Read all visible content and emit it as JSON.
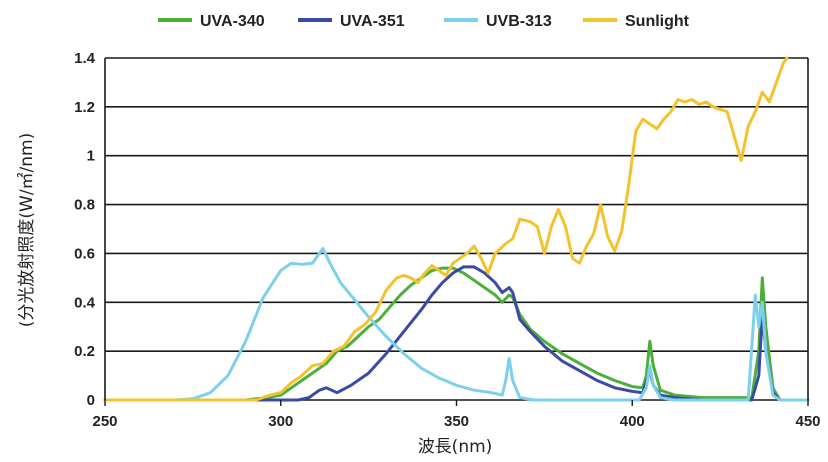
{
  "chart_data": {
    "type": "line",
    "xlabel": "波長(nm)",
    "ylabel": "(分光放射照度(W/㎡/nm)",
    "xlim": [
      250,
      450
    ],
    "ylim": [
      0,
      1.4
    ],
    "x_ticks": [
      "250",
      "300",
      "350",
      "400",
      "450"
    ],
    "y_ticks": [
      "0",
      "0.2",
      "0.4",
      "0.6",
      "0.8",
      "1",
      "1.2",
      "1.4"
    ],
    "grid": "horizontal",
    "legend_position": "top",
    "series": [
      {
        "name": "UVA-340",
        "color": "#4caf3a",
        "points": [
          [
            250,
            0
          ],
          [
            290,
            0
          ],
          [
            296,
            0.01
          ],
          [
            300,
            0.02
          ],
          [
            303,
            0.05
          ],
          [
            306,
            0.08
          ],
          [
            310,
            0.12
          ],
          [
            313,
            0.15
          ],
          [
            316,
            0.2
          ],
          [
            319,
            0.22
          ],
          [
            322,
            0.26
          ],
          [
            325,
            0.3
          ],
          [
            328,
            0.33
          ],
          [
            331,
            0.38
          ],
          [
            334,
            0.43
          ],
          [
            337,
            0.47
          ],
          [
            340,
            0.5
          ],
          [
            343,
            0.53
          ],
          [
            346,
            0.54
          ],
          [
            349,
            0.54
          ],
          [
            352,
            0.52
          ],
          [
            355,
            0.49
          ],
          [
            358,
            0.46
          ],
          [
            361,
            0.43
          ],
          [
            363,
            0.4
          ],
          [
            365,
            0.43
          ],
          [
            366,
            0.42
          ],
          [
            368,
            0.35
          ],
          [
            371,
            0.29
          ],
          [
            375,
            0.24
          ],
          [
            380,
            0.19
          ],
          [
            385,
            0.15
          ],
          [
            390,
            0.11
          ],
          [
            395,
            0.08
          ],
          [
            400,
            0.055
          ],
          [
            403,
            0.05
          ],
          [
            404,
            0.1
          ],
          [
            405,
            0.24
          ],
          [
            406,
            0.14
          ],
          [
            408,
            0.04
          ],
          [
            412,
            0.02
          ],
          [
            420,
            0.01
          ],
          [
            430,
            0.01
          ],
          [
            434,
            0.01
          ],
          [
            436,
            0.2
          ],
          [
            437,
            0.5
          ],
          [
            438,
            0.3
          ],
          [
            440,
            0.05
          ],
          [
            442,
            0
          ],
          [
            450,
            0
          ]
        ]
      },
      {
        "name": "UVA-351",
        "color": "#3a4aa6",
        "points": [
          [
            250,
            0
          ],
          [
            305,
            0
          ],
          [
            308,
            0.01
          ],
          [
            311,
            0.04
          ],
          [
            313,
            0.05
          ],
          [
            316,
            0.03
          ],
          [
            320,
            0.06
          ],
          [
            325,
            0.11
          ],
          [
            330,
            0.19
          ],
          [
            335,
            0.28
          ],
          [
            340,
            0.37
          ],
          [
            343,
            0.43
          ],
          [
            346,
            0.48
          ],
          [
            349,
            0.52
          ],
          [
            352,
            0.545
          ],
          [
            355,
            0.545
          ],
          [
            358,
            0.52
          ],
          [
            361,
            0.48
          ],
          [
            363,
            0.44
          ],
          [
            365,
            0.46
          ],
          [
            366,
            0.44
          ],
          [
            368,
            0.33
          ],
          [
            371,
            0.28
          ],
          [
            375,
            0.22
          ],
          [
            380,
            0.16
          ],
          [
            385,
            0.12
          ],
          [
            390,
            0.08
          ],
          [
            395,
            0.05
          ],
          [
            400,
            0.035
          ],
          [
            403,
            0.03
          ],
          [
            405,
            0.12
          ],
          [
            406,
            0.06
          ],
          [
            408,
            0.02
          ],
          [
            412,
            0.01
          ],
          [
            420,
            0
          ],
          [
            434,
            0
          ],
          [
            436,
            0.1
          ],
          [
            437,
            0.35
          ],
          [
            438,
            0.2
          ],
          [
            440,
            0.03
          ],
          [
            442,
            0
          ],
          [
            450,
            0
          ]
        ]
      },
      {
        "name": "UVB-313",
        "color": "#7dd0ec",
        "points": [
          [
            250,
            0
          ],
          [
            270,
            0
          ],
          [
            275,
            0.005
          ],
          [
            280,
            0.03
          ],
          [
            285,
            0.1
          ],
          [
            290,
            0.24
          ],
          [
            295,
            0.42
          ],
          [
            300,
            0.53
          ],
          [
            303,
            0.56
          ],
          [
            306,
            0.555
          ],
          [
            309,
            0.56
          ],
          [
            312,
            0.62
          ],
          [
            314,
            0.56
          ],
          [
            317,
            0.48
          ],
          [
            321,
            0.41
          ],
          [
            325,
            0.34
          ],
          [
            330,
            0.26
          ],
          [
            335,
            0.19
          ],
          [
            340,
            0.13
          ],
          [
            345,
            0.09
          ],
          [
            350,
            0.06
          ],
          [
            355,
            0.04
          ],
          [
            360,
            0.03
          ],
          [
            363,
            0.02
          ],
          [
            364,
            0.08
          ],
          [
            365,
            0.17
          ],
          [
            366,
            0.08
          ],
          [
            368,
            0.01
          ],
          [
            372,
            0
          ],
          [
            402,
            0
          ],
          [
            404,
            0.05
          ],
          [
            405,
            0.14
          ],
          [
            406,
            0.06
          ],
          [
            408,
            0.01
          ],
          [
            412,
            0
          ],
          [
            433,
            0
          ],
          [
            435,
            0.43
          ],
          [
            436,
            0.3
          ],
          [
            437,
            0.4
          ],
          [
            438,
            0.2
          ],
          [
            440,
            0.02
          ],
          [
            442,
            0
          ],
          [
            450,
            0
          ]
        ]
      },
      {
        "name": "Sunlight",
        "color": "#f2c32c",
        "points": [
          [
            250,
            0
          ],
          [
            293,
            0
          ],
          [
            297,
            0.02
          ],
          [
            300,
            0.03
          ],
          [
            303,
            0.07
          ],
          [
            306,
            0.1
          ],
          [
            309,
            0.14
          ],
          [
            312,
            0.15
          ],
          [
            315,
            0.2
          ],
          [
            318,
            0.22
          ],
          [
            321,
            0.28
          ],
          [
            324,
            0.31
          ],
          [
            327,
            0.36
          ],
          [
            330,
            0.45
          ],
          [
            333,
            0.5
          ],
          [
            335,
            0.51
          ],
          [
            337,
            0.5
          ],
          [
            339,
            0.48
          ],
          [
            341,
            0.52
          ],
          [
            343,
            0.55
          ],
          [
            345,
            0.53
          ],
          [
            347,
            0.51
          ],
          [
            349,
            0.56
          ],
          [
            351,
            0.58
          ],
          [
            353,
            0.6
          ],
          [
            355,
            0.63
          ],
          [
            357,
            0.58
          ],
          [
            359,
            0.52
          ],
          [
            361,
            0.6
          ],
          [
            364,
            0.64
          ],
          [
            366,
            0.66
          ],
          [
            368,
            0.74
          ],
          [
            371,
            0.73
          ],
          [
            373,
            0.71
          ],
          [
            375,
            0.6
          ],
          [
            377,
            0.71
          ],
          [
            379,
            0.78
          ],
          [
            381,
            0.71
          ],
          [
            383,
            0.58
          ],
          [
            385,
            0.56
          ],
          [
            387,
            0.63
          ],
          [
            389,
            0.68
          ],
          [
            391,
            0.8
          ],
          [
            393,
            0.67
          ],
          [
            395,
            0.61
          ],
          [
            397,
            0.69
          ],
          [
            399,
            0.88
          ],
          [
            401,
            1.1
          ],
          [
            403,
            1.15
          ],
          [
            405,
            1.13
          ],
          [
            407,
            1.11
          ],
          [
            409,
            1.15
          ],
          [
            411,
            1.18
          ],
          [
            413,
            1.23
          ],
          [
            415,
            1.22
          ],
          [
            417,
            1.23
          ],
          [
            419,
            1.21
          ],
          [
            421,
            1.22
          ],
          [
            423,
            1.2
          ],
          [
            425,
            1.19
          ],
          [
            427,
            1.18
          ],
          [
            429,
            1.08
          ],
          [
            431,
            0.98
          ],
          [
            433,
            1.12
          ],
          [
            435,
            1.18
          ],
          [
            437,
            1.26
          ],
          [
            439,
            1.22
          ],
          [
            441,
            1.3
          ],
          [
            443,
            1.38
          ],
          [
            444,
            1.4
          ]
        ]
      }
    ]
  }
}
